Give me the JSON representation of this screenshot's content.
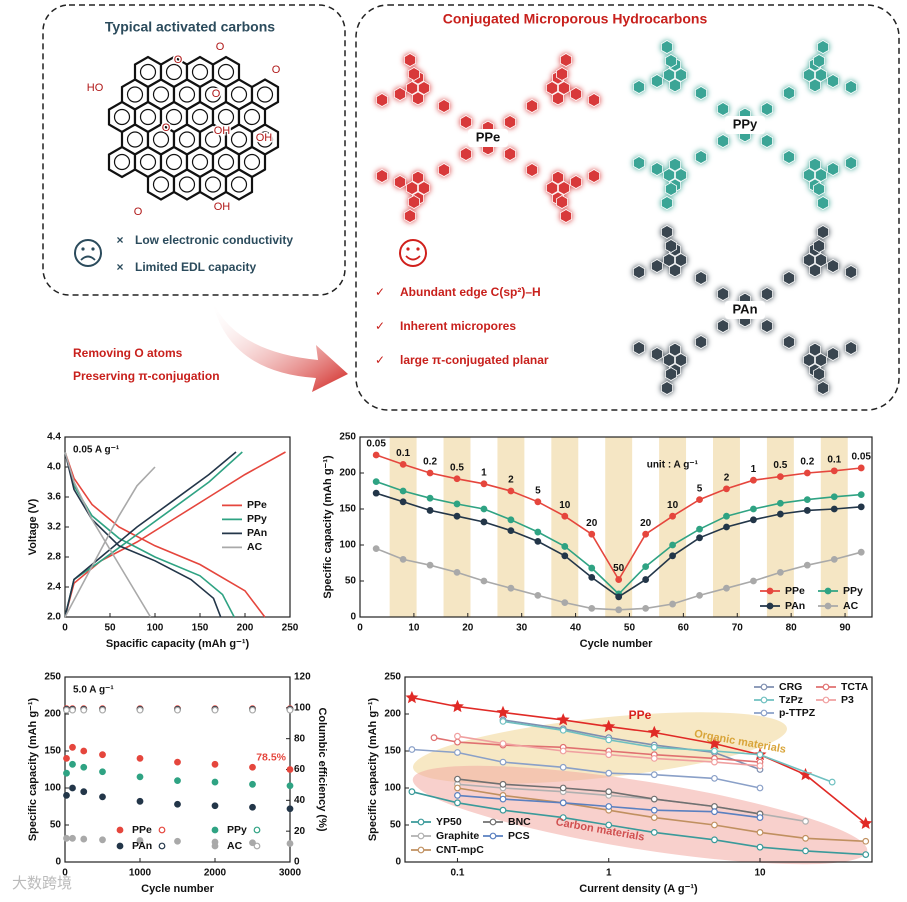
{
  "diagram": {
    "left_box": {
      "title": "Typical activated carbons",
      "atoms": [
        "O",
        "O",
        "O",
        "HO",
        "O",
        "O",
        "OH",
        "OH",
        "O",
        "OH"
      ],
      "bullet": "×",
      "drawbacks": [
        "Low electronic conductivity",
        "Limited EDL capacity"
      ]
    },
    "arrow_labels": [
      "Removing O atoms",
      "Preserving π-conjugation"
    ],
    "right_box": {
      "title": "Conjugated Microporous Hydrocarbons",
      "materials": [
        "PPe",
        "PPy",
        "PAn"
      ],
      "check": "✓",
      "advantages": [
        "Abundant edge C(sp²)–H",
        "Inherent micropores",
        "large π-conjugated planar"
      ]
    },
    "watermark": "大数跨境"
  },
  "chart_data": [
    {
      "type": "line",
      "annotation": "0.05 A g⁻¹",
      "x_label": "Spacific capacity (mAh g⁻¹)",
      "y_label": "Voltage (V)",
      "xlim": [
        0,
        250
      ],
      "ylim": [
        2.0,
        4.4
      ],
      "xticks": [
        0,
        50,
        100,
        150,
        200,
        250
      ],
      "yticks": [
        {
          "value": 2,
          "label": "2.0"
        },
        {
          "value": 2.4,
          "label": "2.4"
        },
        {
          "value": 2.8,
          "label": "2.8"
        },
        {
          "value": 3.2,
          "label": "3.2"
        },
        {
          "value": 3.6,
          "label": "3.6"
        },
        {
          "value": 4,
          "label": "4.0"
        },
        {
          "value": 4.4,
          "label": "4.4"
        }
      ],
      "legend": "right",
      "series": [
        {
          "name": "PPe",
          "color": "#e5463d",
          "x": [
            0,
            10,
            30,
            60,
            100,
            150,
            200,
            222,
            null,
            0,
            10,
            40,
            80,
            120,
            160,
            200,
            245
          ],
          "values": [
            4.2,
            3.85,
            3.5,
            3.2,
            2.95,
            2.7,
            2.35,
            2.0,
            null,
            2.0,
            2.45,
            2.75,
            3.0,
            3.3,
            3.6,
            3.9,
            4.2
          ]
        },
        {
          "name": "PPy",
          "color": "#2fa383",
          "x": [
            0,
            10,
            30,
            60,
            100,
            150,
            175,
            188,
            null,
            0,
            10,
            40,
            80,
            120,
            160,
            197
          ],
          "values": [
            4.2,
            3.75,
            3.35,
            3.05,
            2.8,
            2.55,
            2.3,
            2.0,
            null,
            2.0,
            2.5,
            2.75,
            3.1,
            3.45,
            3.8,
            4.2
          ]
        },
        {
          "name": "PAn",
          "color": "#233649",
          "x": [
            0,
            10,
            30,
            60,
            100,
            140,
            165,
            173,
            null,
            0,
            10,
            40,
            80,
            120,
            160,
            190
          ],
          "values": [
            4.2,
            3.7,
            3.3,
            2.95,
            2.75,
            2.5,
            2.25,
            2.0,
            null,
            2.0,
            2.5,
            2.8,
            3.2,
            3.55,
            3.9,
            4.2
          ]
        },
        {
          "name": "AC",
          "color": "#a9a9a9",
          "x": [
            0,
            10,
            30,
            50,
            70,
            85,
            95,
            null,
            0,
            20,
            40,
            60,
            80,
            100
          ],
          "values": [
            4.2,
            3.8,
            3.3,
            2.9,
            2.5,
            2.2,
            2.0,
            null,
            2.0,
            2.45,
            2.9,
            3.35,
            3.75,
            4.0
          ]
        }
      ]
    },
    {
      "type": "line",
      "annotation": "unit : A g⁻¹",
      "x_label": "Cycle number",
      "y_label": "Specific capacity (mAh g⁻¹)",
      "xlim": [
        0,
        95
      ],
      "ylim": [
        0,
        250
      ],
      "xticks": [
        0,
        10,
        20,
        30,
        40,
        50,
        60,
        70,
        80,
        90
      ],
      "yticks": [
        0,
        50,
        100,
        150,
        200,
        250
      ],
      "band_color": "#f5e6c4",
      "x": [
        3,
        8,
        13,
        18,
        23,
        28,
        33,
        38,
        43,
        48,
        53,
        58,
        63,
        68,
        73,
        78,
        83,
        88,
        93
      ],
      "rate_labels": [
        "0.05",
        "0.1",
        "0.2",
        "0.5",
        "1",
        "2",
        "5",
        "10",
        "20",
        "50",
        "20",
        "10",
        "5",
        "2",
        "1",
        "0.5",
        "0.2",
        "0.1",
        "0.05"
      ],
      "legend": "bottom-right",
      "series": [
        {
          "name": "PPe",
          "color": "#e5463d",
          "marker": "filled",
          "values": [
            225,
            212,
            200,
            192,
            185,
            175,
            160,
            140,
            115,
            52,
            115,
            140,
            163,
            178,
            190,
            195,
            200,
            203,
            207
          ]
        },
        {
          "name": "PPy",
          "color": "#2fa383",
          "marker": "filled",
          "values": [
            188,
            175,
            165,
            157,
            150,
            135,
            118,
            98,
            68,
            32,
            70,
            100,
            122,
            140,
            150,
            158,
            163,
            167,
            170
          ]
        },
        {
          "name": "PAn",
          "color": "#233649",
          "marker": "filled",
          "values": [
            172,
            160,
            148,
            140,
            132,
            120,
            105,
            85,
            55,
            28,
            52,
            85,
            110,
            125,
            135,
            143,
            148,
            150,
            153
          ]
        },
        {
          "name": "AC",
          "color": "#a9a9a9",
          "marker": "filled",
          "values": [
            95,
            80,
            72,
            62,
            50,
            40,
            30,
            20,
            12,
            10,
            12,
            18,
            30,
            40,
            50,
            62,
            72,
            80,
            90
          ]
        }
      ]
    },
    {
      "type": "scatter",
      "annotation": "5.0 A g⁻¹",
      "retention_label": "78.5%",
      "x_label": "Cycle number",
      "y_label": "Specific capacity (mAh g⁻¹)",
      "y2_label": "Columbic efficiency (%)",
      "xlim": [
        0,
        3000
      ],
      "ylim": [
        0,
        250
      ],
      "y2lim": [
        0,
        120
      ],
      "xticks": [
        0,
        1000,
        2000,
        3000
      ],
      "yticks": [
        0,
        50,
        100,
        150,
        200,
        250
      ],
      "y2ticks": [
        0,
        20,
        40,
        60,
        80,
        100,
        120
      ],
      "x": [
        20,
        100,
        250,
        500,
        1000,
        1500,
        2000,
        2500,
        3000
      ],
      "legend": "bottom",
      "series": [
        {
          "name": "PPe",
          "color": "#e5463d",
          "marker": "filled",
          "values": [
            140,
            155,
            150,
            145,
            140,
            135,
            132,
            128,
            125
          ]
        },
        {
          "name": "PPy",
          "color": "#2fa383",
          "marker": "filled",
          "values": [
            120,
            132,
            128,
            122,
            115,
            110,
            108,
            105,
            103
          ]
        },
        {
          "name": "PAn",
          "color": "#233649",
          "marker": "filled",
          "values": [
            90,
            100,
            95,
            88,
            82,
            78,
            76,
            74,
            72
          ]
        },
        {
          "name": "AC",
          "color": "#a9a9a9",
          "marker": "filled",
          "values": [
            32,
            32,
            31,
            30,
            29,
            28,
            27,
            26,
            25
          ]
        },
        {
          "color": "#e5463d",
          "marker": "open",
          "axis": "y2",
          "values": [
            99.5,
            99.5,
            99.5,
            99.5,
            99.5,
            99.5,
            99.5,
            99.5,
            99.5
          ]
        },
        {
          "color": "#2fa383",
          "marker": "open",
          "axis": "y2",
          "values": [
            99,
            99,
            99,
            99,
            99,
            99,
            99,
            99,
            99
          ]
        },
        {
          "color": "#233649",
          "marker": "open",
          "axis": "y2",
          "values": [
            99,
            99,
            99,
            99,
            99,
            99,
            99,
            99,
            99
          ]
        },
        {
          "color": "#a9a9a9",
          "marker": "open",
          "axis": "y2",
          "values": [
            98.5,
            98.5,
            98.5,
            98.5,
            98.5,
            98.5,
            98.5,
            98.5,
            98.5
          ]
        }
      ]
    },
    {
      "type": "line",
      "log_x": true,
      "x_label": "Current density (A g⁻¹)",
      "y_label": "Specific capacity (mAh g⁻¹)",
      "xlim": [
        0.045,
        55
      ],
      "ylim": [
        0,
        250
      ],
      "xticks": [
        0.1,
        1,
        10
      ],
      "yticks": [
        0,
        50,
        100,
        150,
        200,
        250
      ],
      "annotations": [
        "PPe",
        "Organic materials",
        "Carbon materials"
      ],
      "series": [
        {
          "name": "PPe",
          "color": "#e02a26",
          "marker": "star",
          "x": [
            0.05,
            0.1,
            0.2,
            0.5,
            1,
            2,
            5,
            10,
            20,
            50
          ],
          "values": [
            222,
            210,
            202,
            192,
            183,
            175,
            160,
            145,
            118,
            52
          ]
        },
        {
          "name": "CRG",
          "color": "#7f8fb0",
          "marker": "open",
          "legend": "top-right",
          "x": [
            0.2,
            0.5,
            1,
            2,
            5,
            10
          ],
          "values": [
            192,
            180,
            168,
            158,
            148,
            125
          ]
        },
        {
          "name": "TzPz",
          "color": "#6fc0c0",
          "marker": "open",
          "legend": "top-right",
          "x": [
            0.2,
            0.5,
            1,
            2,
            5,
            10,
            30
          ],
          "values": [
            190,
            178,
            165,
            155,
            150,
            145,
            108
          ]
        },
        {
          "name": "p-TTPZ",
          "color": "#8aa0c8",
          "marker": "open",
          "legend": "top-right",
          "x": [
            0.05,
            0.1,
            0.2,
            0.5,
            1,
            2,
            5,
            10
          ],
          "values": [
            152,
            148,
            135,
            128,
            120,
            118,
            113,
            100
          ]
        },
        {
          "name": "TCTA",
          "color": "#e07070",
          "marker": "open",
          "legend": "top-right",
          "x": [
            0.07,
            0.1,
            0.2,
            0.5,
            1,
            2,
            5,
            10
          ],
          "values": [
            168,
            162,
            158,
            155,
            150,
            145,
            140,
            135
          ]
        },
        {
          "name": "P3",
          "color": "#f0a0a0",
          "marker": "open",
          "legend": "top-right",
          "x": [
            0.1,
            0.2,
            0.5,
            1,
            2,
            5,
            10
          ],
          "values": [
            170,
            160,
            150,
            145,
            140,
            135,
            130
          ]
        },
        {
          "name": "YP50",
          "color": "#3a9a9a",
          "marker": "open",
          "legend": "bottom-left",
          "x": [
            0.05,
            0.1,
            0.2,
            0.5,
            1,
            2,
            5,
            10,
            20,
            50
          ],
          "values": [
            95,
            80,
            70,
            60,
            50,
            40,
            30,
            20,
            15,
            10
          ]
        },
        {
          "name": "Graphite",
          "color": "#b0b0b0",
          "marker": "open",
          "legend": "bottom-left",
          "x": [
            0.1,
            0.2,
            0.5,
            1,
            2,
            5,
            10,
            20
          ],
          "values": [
            105,
            100,
            95,
            90,
            85,
            75,
            65,
            55
          ]
        },
        {
          "name": "CNT-mpC",
          "color": "#c09060",
          "marker": "open",
          "legend": "bottom-left",
          "x": [
            0.1,
            0.2,
            0.5,
            1,
            2,
            5,
            10,
            20,
            50
          ],
          "values": [
            100,
            90,
            80,
            70,
            60,
            50,
            40,
            32,
            28
          ]
        },
        {
          "name": "BNC",
          "color": "#707070",
          "marker": "open",
          "legend": "bottom-left",
          "x": [
            0.1,
            0.2,
            0.5,
            1,
            2,
            5,
            10
          ],
          "values": [
            112,
            105,
            100,
            95,
            85,
            75,
            65
          ]
        },
        {
          "name": "PCS",
          "color": "#5a80c0",
          "marker": "open",
          "legend": "bottom-left",
          "x": [
            0.1,
            0.2,
            0.5,
            1,
            2,
            5,
            10
          ],
          "values": [
            90,
            85,
            80,
            75,
            70,
            68,
            60
          ]
        }
      ]
    }
  ]
}
